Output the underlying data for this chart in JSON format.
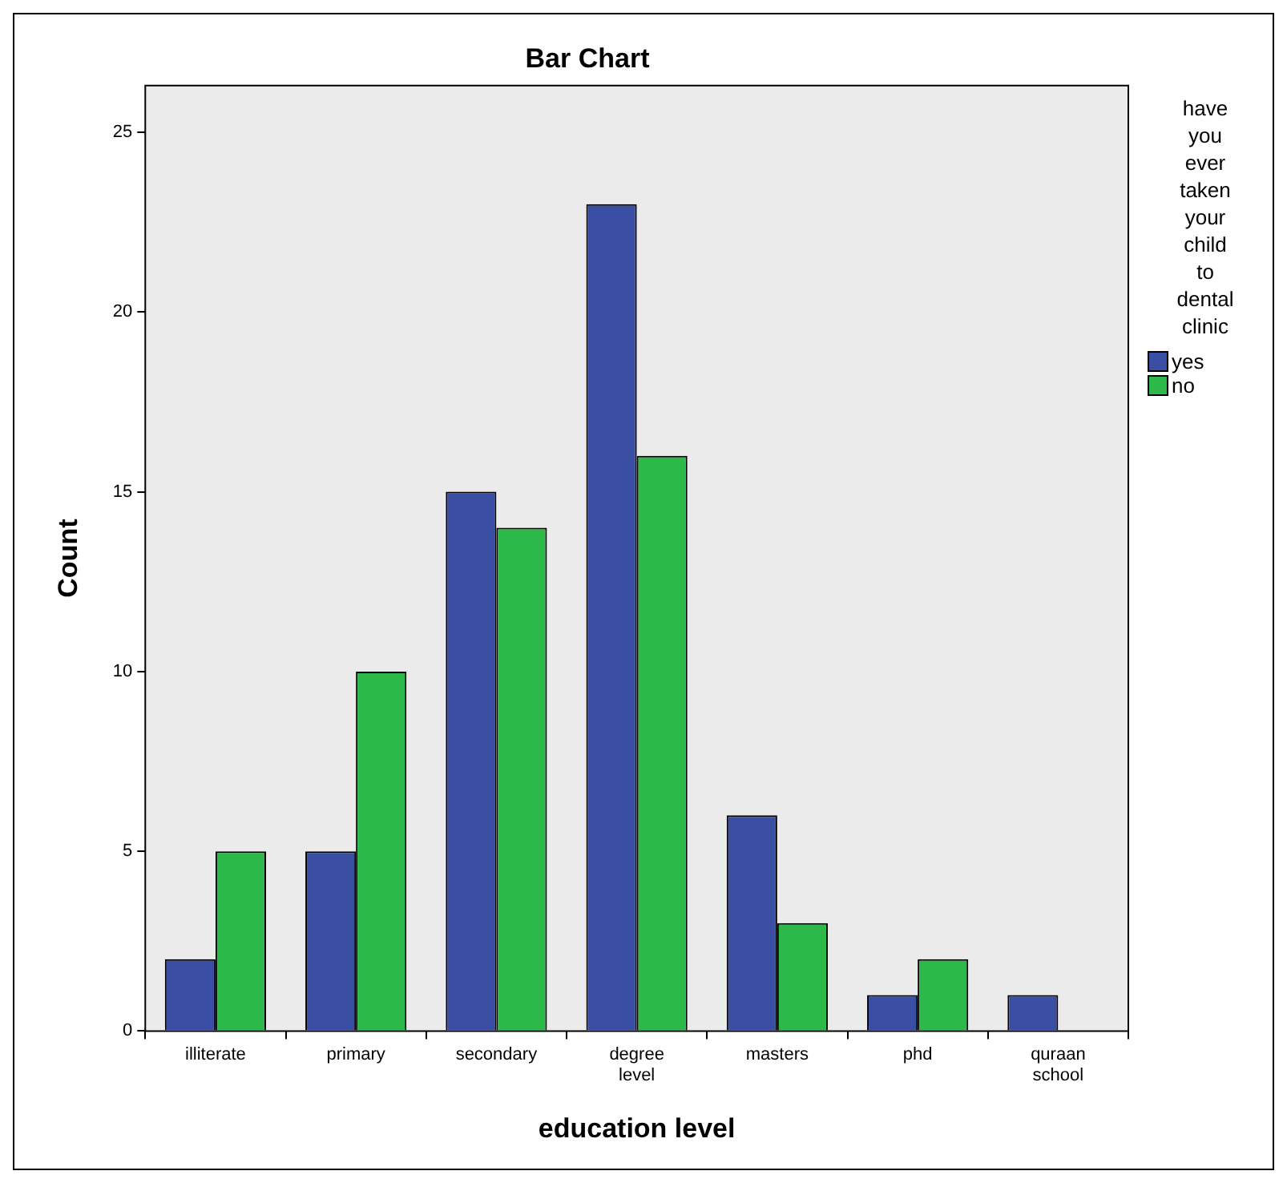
{
  "chart_data": {
    "type": "bar",
    "title": "Bar Chart",
    "xlabel": "education level",
    "ylabel": "Count",
    "legend_title": "have you ever taken your child to dental clinic",
    "legend": "right",
    "grid": false,
    "categories": [
      "illiterate",
      "primary",
      "secondary",
      "degree level",
      "masters",
      "phd",
      "quraan school"
    ],
    "series": [
      {
        "name": "yes",
        "color": "#3a4fa4",
        "values": [
          2,
          5,
          15,
          23,
          6,
          1,
          1
        ]
      },
      {
        "name": "no",
        "color": "#2db84a",
        "values": [
          5,
          10,
          14,
          16,
          3,
          2,
          0
        ]
      }
    ],
    "ylim": [
      0,
      26.3
    ],
    "yticks": [
      0,
      5,
      10,
      15,
      20,
      25
    ]
  }
}
